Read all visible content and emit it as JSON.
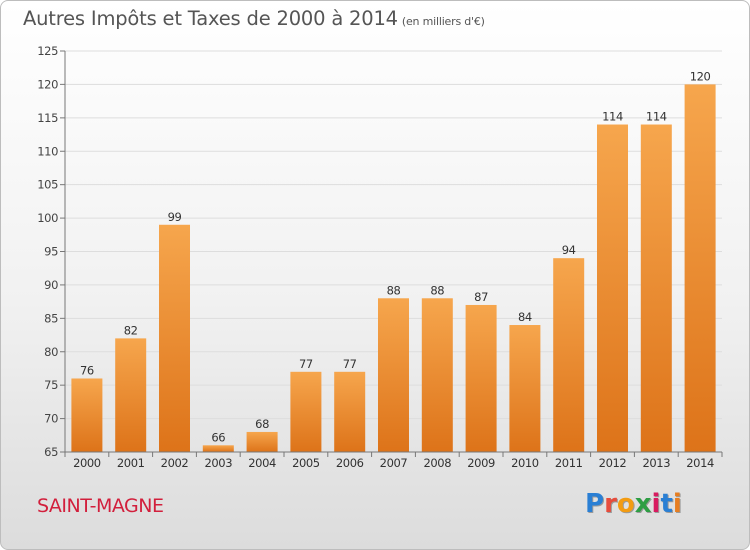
{
  "header": {
    "title": "Autres Impôts et Taxes de 2000 à 2014",
    "subtitle": "(en milliers d'€)"
  },
  "footer": {
    "commune": "SAINT-MAGNE",
    "logo_text": "Proxiti",
    "logo_letters": [
      {
        "ch": "P",
        "color": "#2a7fd4"
      },
      {
        "ch": "r",
        "color": "#e74c3c"
      },
      {
        "ch": "o",
        "color": "#f39c12"
      },
      {
        "ch": "x",
        "color": "#2e9e44"
      },
      {
        "ch": "i",
        "color": "#d81b60"
      },
      {
        "ch": "t",
        "color": "#2a7fd4"
      },
      {
        "ch": "i",
        "color": "#e67e22"
      }
    ]
  },
  "colors": {
    "bar_light": "#f6a64d",
    "bar_dark": "#dd7319",
    "commune": "#d21f3c",
    "grid": "#dddddd"
  },
  "chart_data": {
    "type": "bar",
    "categories": [
      "2000",
      "2001",
      "2002",
      "2003",
      "2004",
      "2005",
      "2006",
      "2007",
      "2008",
      "2009",
      "2010",
      "2011",
      "2012",
      "2013",
      "2014"
    ],
    "values": [
      76,
      82,
      99,
      66,
      68,
      77,
      77,
      88,
      88,
      87,
      84,
      94,
      114,
      114,
      120
    ],
    "ylim": [
      65,
      125
    ],
    "yticks": [
      65,
      70,
      75,
      80,
      85,
      90,
      95,
      100,
      105,
      110,
      115,
      120,
      125
    ],
    "grid": true,
    "data_labels": true
  }
}
